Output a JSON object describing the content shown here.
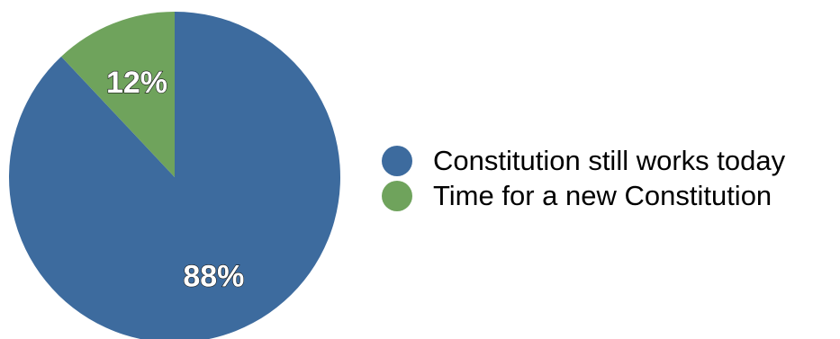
{
  "chart_data": {
    "type": "pie",
    "title": "",
    "slices": [
      {
        "name": "Constitution still works today",
        "value": 88,
        "label": "88%",
        "color": "#3d6b9e"
      },
      {
        "name": "Time for a new Constitution",
        "value": 12,
        "label": "12%",
        "color": "#6fa35c"
      }
    ],
    "legend_position": "right",
    "legend": [
      {
        "label": "Constitution still works today",
        "color": "#3d6b9e"
      },
      {
        "label": "Time for a new Constitution",
        "color": "#6fa35c"
      }
    ]
  }
}
